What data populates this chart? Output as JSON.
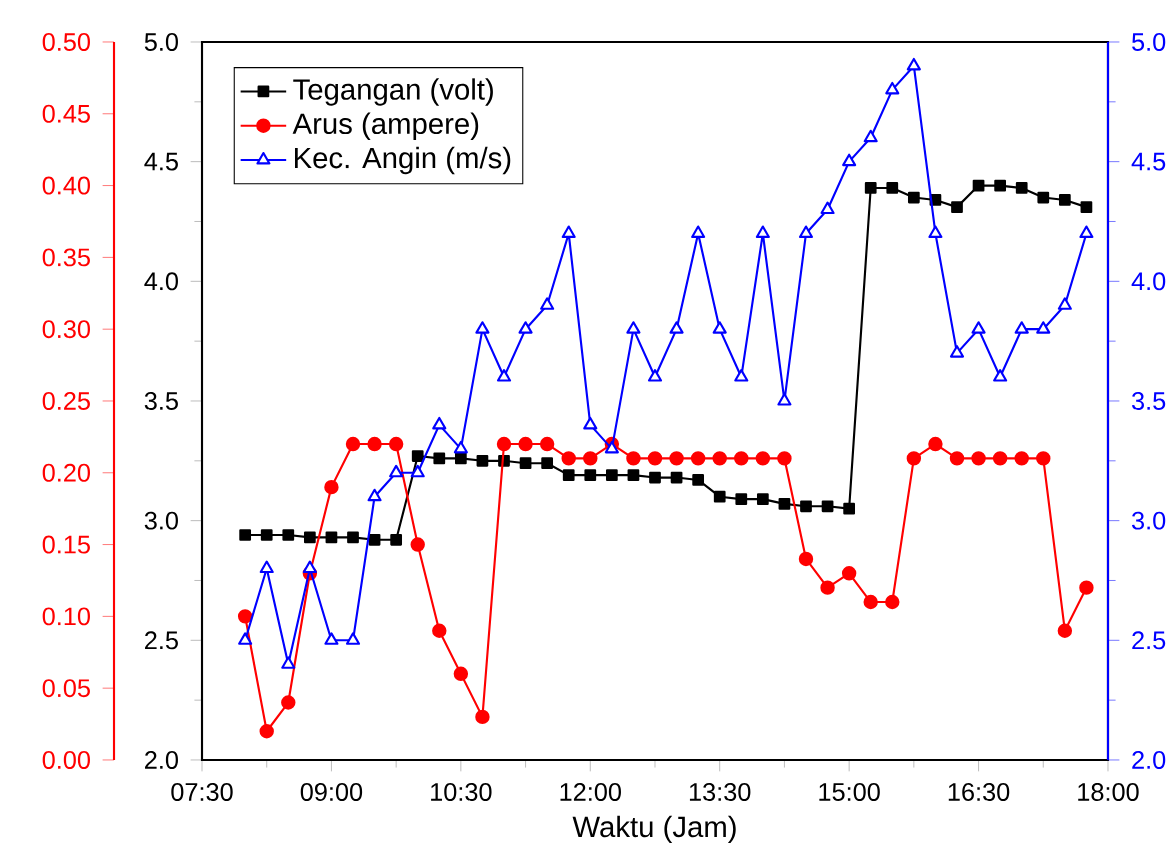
{
  "chart_data": {
    "type": "line",
    "xlabel": "Waktu (Jam)",
    "legend": "top left",
    "x": [
      8,
      8.25,
      8.5,
      8.75,
      9,
      9.25,
      9.5,
      9.75,
      10,
      10.25,
      10.5,
      10.75,
      11,
      11.25,
      11.5,
      11.75,
      12,
      12.25,
      12.5,
      12.75,
      13,
      13.25,
      13.5,
      13.75,
      14,
      14.25,
      14.5,
      14.75,
      15,
      15.25,
      15.5,
      15.75,
      16,
      16.25,
      16.5,
      16.75,
      17,
      17.25,
      17.5,
      17.75
    ],
    "xlim": [
      7.5,
      18
    ],
    "xticks": [
      {
        "value": 7.5,
        "label": "07:30"
      },
      {
        "value": 9,
        "label": "09:00"
      },
      {
        "value": 10.5,
        "label": "10:30"
      },
      {
        "value": 12,
        "label": "12:00"
      },
      {
        "value": 13.5,
        "label": "13:30"
      },
      {
        "value": 15,
        "label": "15:00"
      },
      {
        "value": 16.5,
        "label": "16:30"
      },
      {
        "value": 18,
        "label": "18:00"
      }
    ],
    "ylim": [
      2,
      5
    ],
    "yticks": [
      {
        "value": 2,
        "label": "2.0"
      },
      {
        "value": 2.5,
        "label": "2.5"
      },
      {
        "value": 3,
        "label": "3.0"
      },
      {
        "value": 3.5,
        "label": "3.5"
      },
      {
        "value": 4,
        "label": "4.0"
      },
      {
        "value": 4.5,
        "label": "4.5"
      },
      {
        "value": 5,
        "label": "5.0"
      }
    ],
    "y2lim": [
      2,
      5
    ],
    "y2ticks": [
      {
        "value": 2,
        "label": "2.0"
      },
      {
        "value": 2.5,
        "label": "2.5"
      },
      {
        "value": 3,
        "label": "3.0"
      },
      {
        "value": 3.5,
        "label": "3.5"
      },
      {
        "value": 4,
        "label": "4.0"
      },
      {
        "value": 4.5,
        "label": "4.5"
      },
      {
        "value": 5,
        "label": "5.0"
      }
    ],
    "y3lim": [
      0,
      0.5
    ],
    "y3ticks": [
      {
        "value": 0,
        "label": "0.00"
      },
      {
        "value": 0.05,
        "label": "0.05"
      },
      {
        "value": 0.1,
        "label": "0.10"
      },
      {
        "value": 0.15,
        "label": "0.15"
      },
      {
        "value": 0.2,
        "label": "0.20"
      },
      {
        "value": 0.25,
        "label": "0.25"
      },
      {
        "value": 0.3,
        "label": "0.30"
      },
      {
        "value": 0.35,
        "label": "0.35"
      },
      {
        "value": 0.4,
        "label": "0.40"
      },
      {
        "value": 0.45,
        "label": "0.45"
      },
      {
        "value": 0.5,
        "label": "0.50"
      }
    ],
    "series": [
      {
        "name": "Tegangan (volt)",
        "color": "#000000",
        "marker": "square",
        "axis": "y",
        "values": [
          2.94,
          2.94,
          2.94,
          2.93,
          2.93,
          2.93,
          2.92,
          2.92,
          3.27,
          3.26,
          3.26,
          3.25,
          3.25,
          3.24,
          3.24,
          3.19,
          3.19,
          3.19,
          3.19,
          3.18,
          3.18,
          3.17,
          3.1,
          3.09,
          3.09,
          3.07,
          3.06,
          3.06,
          3.05,
          4.39,
          4.39,
          4.35,
          4.34,
          4.31,
          4.4,
          4.4,
          4.39,
          4.35,
          4.34,
          4.31
        ]
      },
      {
        "name": "Arus (ampere)",
        "color": "#ff0000",
        "marker": "circle",
        "axis": "y3",
        "values": [
          0.1,
          0.02,
          0.04,
          0.13,
          0.19,
          0.22,
          0.22,
          0.22,
          0.15,
          0.09,
          0.06,
          0.03,
          0.22,
          0.22,
          0.22,
          0.21,
          0.21,
          0.22,
          0.21,
          0.21,
          0.21,
          0.21,
          0.21,
          0.21,
          0.21,
          0.21,
          0.14,
          0.12,
          0.13,
          0.11,
          0.11,
          0.21,
          0.22,
          0.21,
          0.21,
          0.21,
          0.21,
          0.21,
          0.09,
          0.12
        ]
      },
      {
        "name": "Kec. Angin (m/s)",
        "color": "#0000ff",
        "marker": "triangle",
        "axis": "y2",
        "values": [
          2.5,
          2.8,
          2.4,
          2.8,
          2.5,
          2.5,
          3.1,
          3.2,
          3.2,
          3.4,
          3.3,
          3.8,
          3.6,
          3.8,
          3.9,
          4.2,
          3.4,
          3.3,
          3.8,
          3.6,
          3.8,
          4.2,
          3.8,
          3.6,
          4.2,
          3.5,
          4.2,
          4.3,
          4.5,
          4.6,
          4.8,
          4.9,
          4.2,
          3.7,
          3.8,
          3.6,
          3.8,
          3.8,
          3.9,
          4.2
        ]
      }
    ]
  }
}
